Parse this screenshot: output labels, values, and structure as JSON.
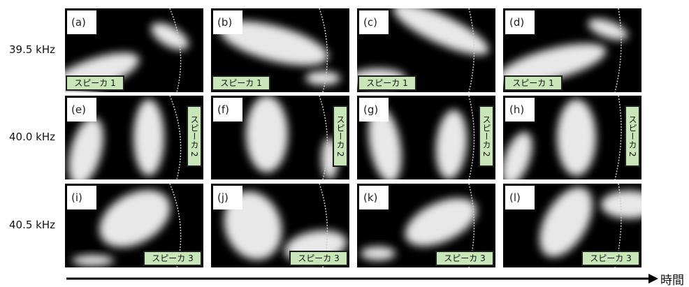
{
  "rows": [
    {
      "label": "39.5 kHz",
      "panels": [
        {
          "label": "(a)",
          "speaker": "スピーカ 1"
        },
        {
          "label": "(b)",
          "speaker": "スピーカ 1"
        },
        {
          "label": "(c)",
          "speaker": "スピーカ 1"
        },
        {
          "label": "(d)",
          "speaker": "スピーカ 1"
        }
      ]
    },
    {
      "label": "40.0 kHz",
      "panels": [
        {
          "label": "(e)",
          "speaker": "スピーカ 2"
        },
        {
          "label": "(f)",
          "speaker": "スピーカ 2"
        },
        {
          "label": "(g)",
          "speaker": "スピーカ 2"
        },
        {
          "label": "(h)",
          "speaker": "スピーカ 2"
        }
      ]
    },
    {
      "label": "40.5 kHz",
      "panels": [
        {
          "label": "(i)",
          "speaker": "スピーカ 3"
        },
        {
          "label": "(j)",
          "speaker": "スピーカ 3"
        },
        {
          "label": "(k)",
          "speaker": "スピーカ 3"
        },
        {
          "label": "(l)",
          "speaker": "スピーカ 3"
        }
      ]
    }
  ],
  "time_axis": {
    "label": "時間"
  }
}
